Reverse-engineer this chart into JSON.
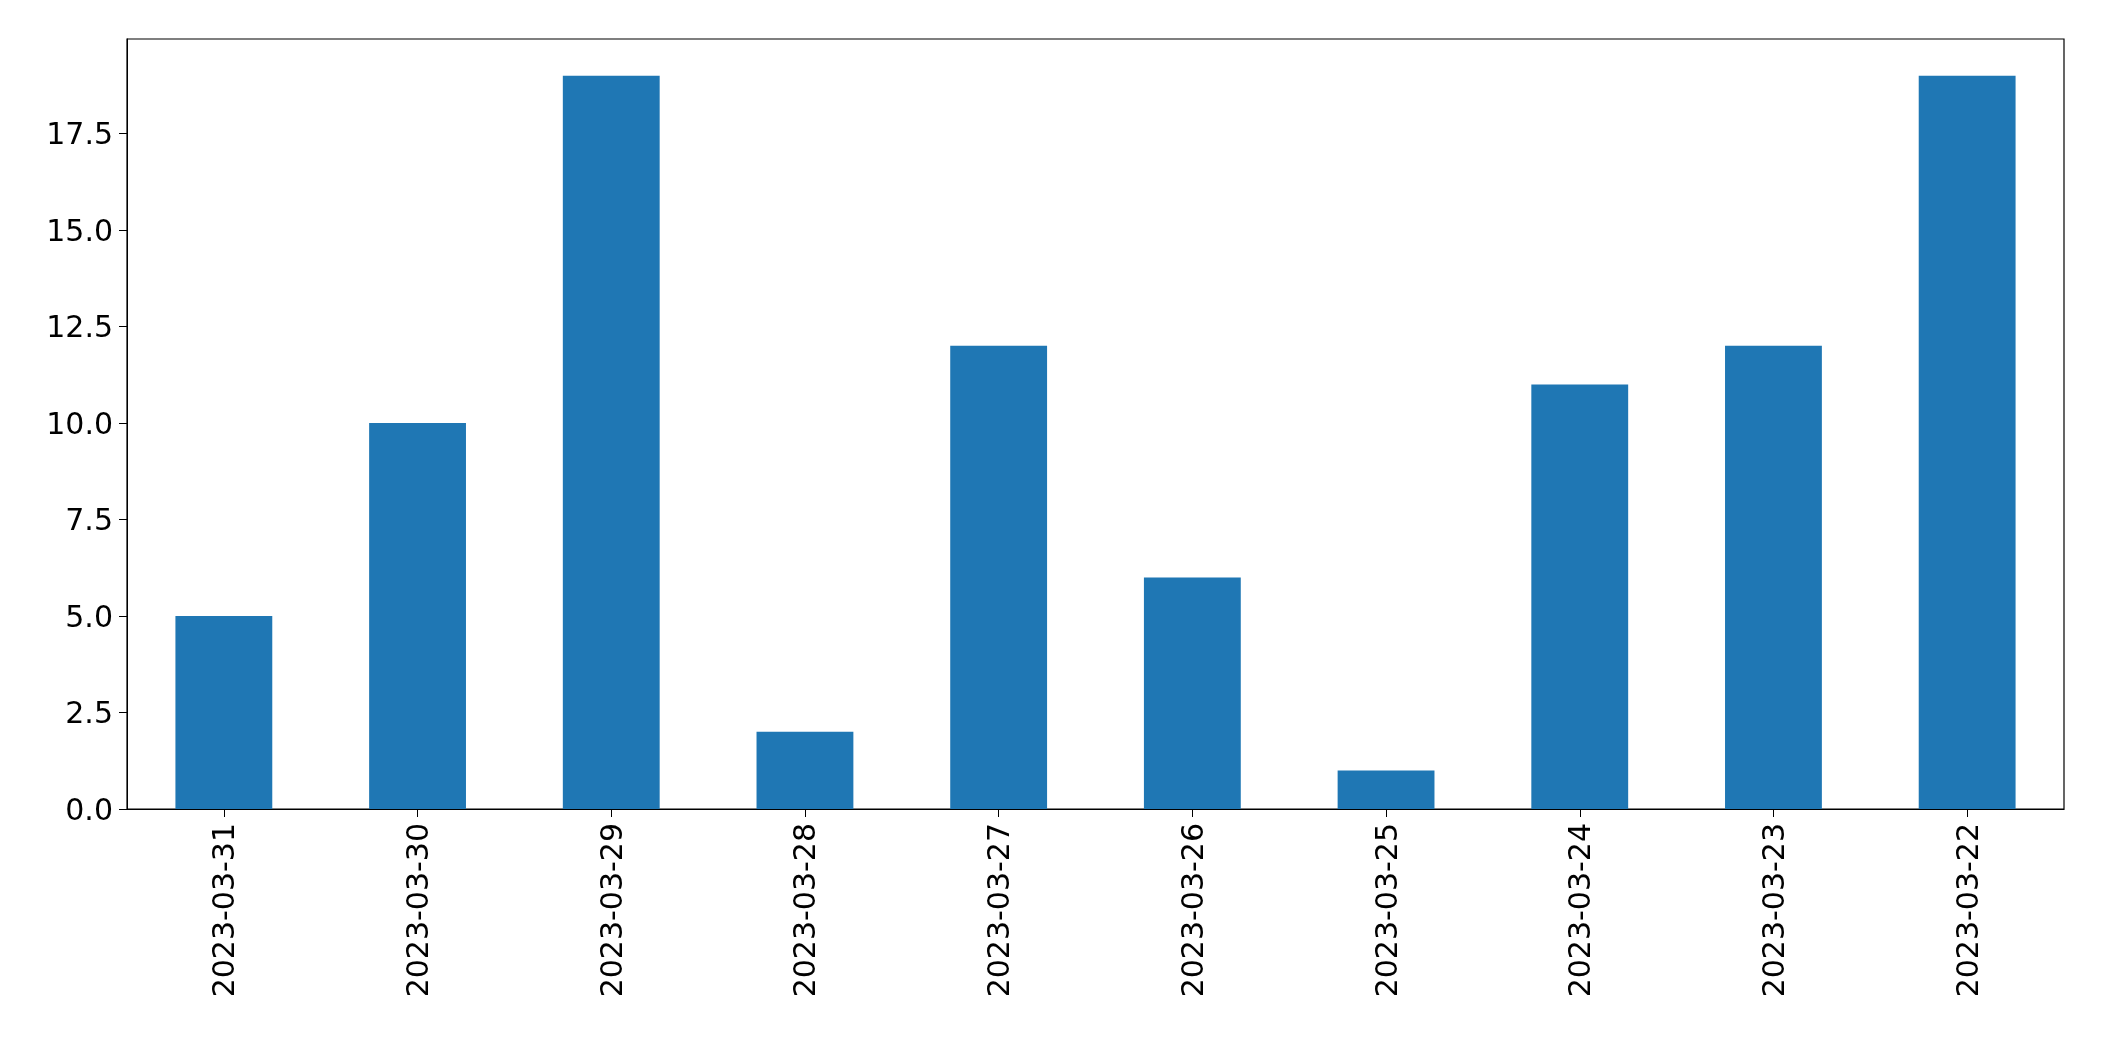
{
  "chart_data": {
    "type": "bar",
    "categories": [
      "2023-03-31",
      "2023-03-30",
      "2023-03-29",
      "2023-03-28",
      "2023-03-27",
      "2023-03-26",
      "2023-03-25",
      "2023-03-24",
      "2023-03-23",
      "2023-03-22"
    ],
    "values": [
      5,
      10,
      19,
      2,
      12,
      6,
      1,
      11,
      12,
      19
    ],
    "color": "#1f77b4",
    "ylim": [
      0,
      19.95
    ],
    "yticks": [
      {
        "value": 0,
        "label": "0.0"
      },
      {
        "value": 2.5,
        "label": "2.5"
      },
      {
        "value": 5,
        "label": "5.0"
      },
      {
        "value": 7.5,
        "label": "7.5"
      },
      {
        "value": 10,
        "label": "10.0"
      },
      {
        "value": 12.5,
        "label": "12.5"
      },
      {
        "value": 15,
        "label": "15.0"
      },
      {
        "value": 17.5,
        "label": "17.5"
      }
    ],
    "data_labels": false
  }
}
